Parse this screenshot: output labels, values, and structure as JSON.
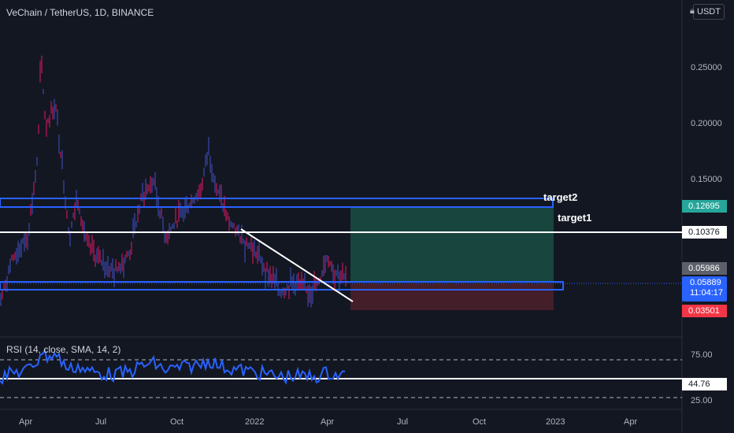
{
  "header": {
    "title": "VeChain / TetherUS, 1D, BINANCE"
  },
  "currency_button": {
    "label": "USDT",
    "icon": "lock-icon"
  },
  "price_axis": [
    "0.25000",
    "0.20000",
    "0.15000"
  ],
  "time_axis": [
    "Apr",
    "Jul",
    "Oct",
    "2022",
    "Apr",
    "Jul",
    "Oct",
    "2023",
    "Apr"
  ],
  "annotations": {
    "target2": "target2",
    "target1": "target1"
  },
  "price_tags": {
    "target2_price": "0.12695",
    "target1_price": "0.10376",
    "entry_price": "0.05986",
    "last_price": "0.05889",
    "countdown": "11:04:17",
    "stop_price": "0.03501"
  },
  "rsi": {
    "title": "RSI (14, close, SMA, 14, 2)",
    "axis": [
      "75.00",
      "25.00"
    ],
    "value": "44.76"
  },
  "colors": {
    "background": "#131722",
    "candles": "#c2185b",
    "support_box": "#2962ff",
    "profit_zone": "#1a4d43",
    "loss_zone": "#4a1f2a",
    "target_tag": "#26a69a",
    "stop_tag": "#f23645",
    "last_price_tag": "#2962ff",
    "rsi_line": "#2962ff"
  }
}
